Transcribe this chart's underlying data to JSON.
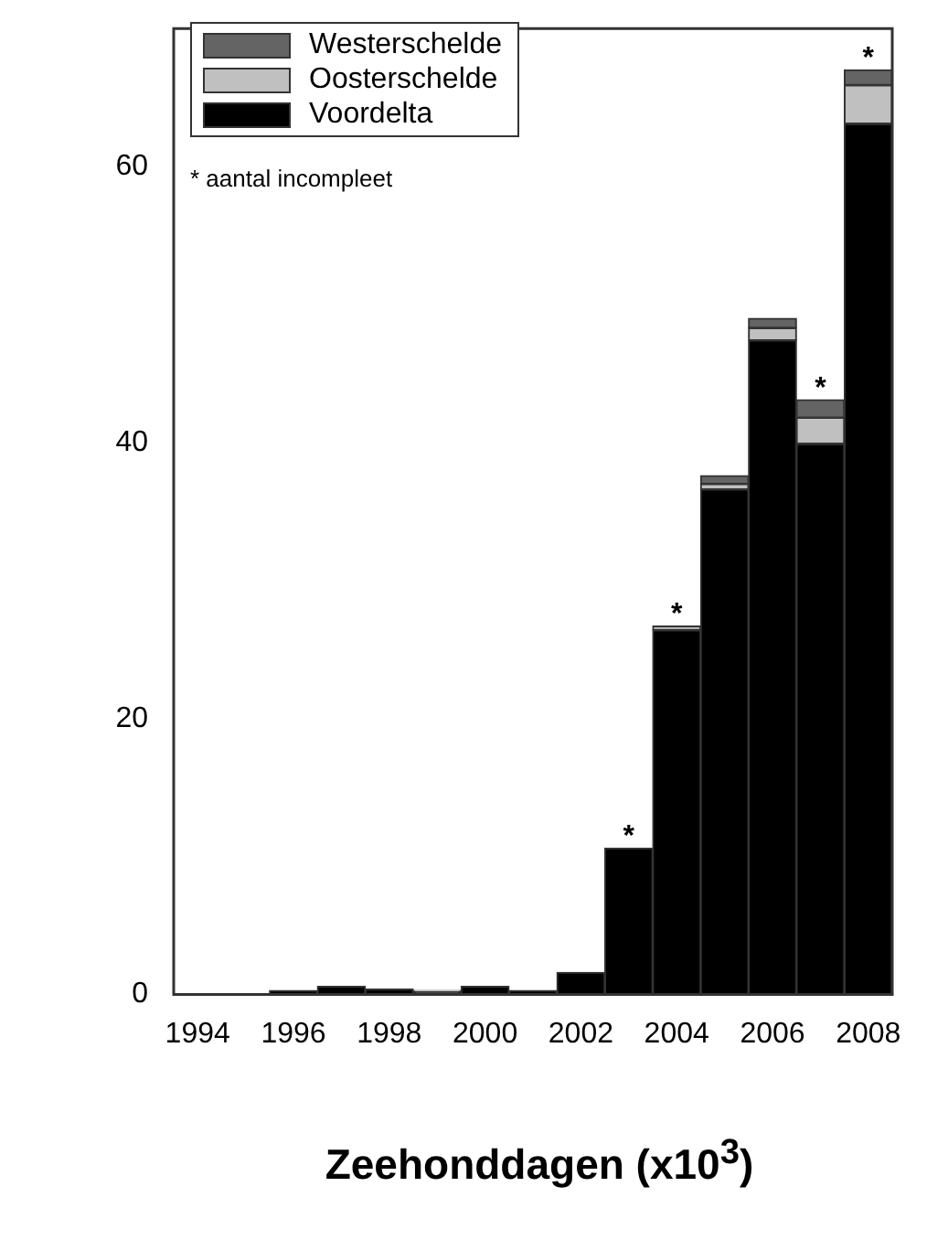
{
  "chart_data": {
    "type": "bar",
    "stacked": true,
    "xlabel": "Zeehonddagen (x10$^{3}$)",
    "categories": [
      "1994",
      null,
      "1996",
      null,
      "1998",
      null,
      "2000",
      null,
      "2002",
      null,
      "2004",
      null,
      "2006",
      null,
      "2008"
    ],
    "series": [
      {
        "name": "Voordelta",
        "color": "#000000",
        "values": [
          0,
          0,
          0.3,
          0.6,
          0.4,
          0.2,
          0.6,
          0.3,
          1.6,
          10.6,
          26.4,
          36.6,
          47.4,
          39.9,
          63.1
        ]
      },
      {
        "name": "Oosterschelde",
        "color": "#c0c0c0",
        "values": [
          0,
          0,
          0,
          0,
          0,
          0.1,
          0,
          0,
          0,
          0,
          0.3,
          0.4,
          0.9,
          1.9,
          2.8
        ]
      },
      {
        "name": "Westerschelde",
        "color": "#646464",
        "values": [
          0,
          0,
          0,
          0,
          0,
          0,
          0,
          0,
          0,
          0,
          0,
          0.6,
          0.7,
          1.3,
          1.1
        ]
      }
    ],
    "ylim": [
      0,
      70
    ],
    "yticks": [
      0,
      20,
      40,
      60
    ],
    "grid": false,
    "legend": "top left",
    "annotations": [
      {
        "text": "*",
        "y": 10.6
      },
      {
        "text": "*",
        "x": "2004",
        "y": 26.7
      },
      {
        "text": "*",
        "y": 43.1
      },
      {
        "text": "*",
        "x": "2008",
        "y": 67.0
      },
      "* aantal incompleet"
    ]
  }
}
